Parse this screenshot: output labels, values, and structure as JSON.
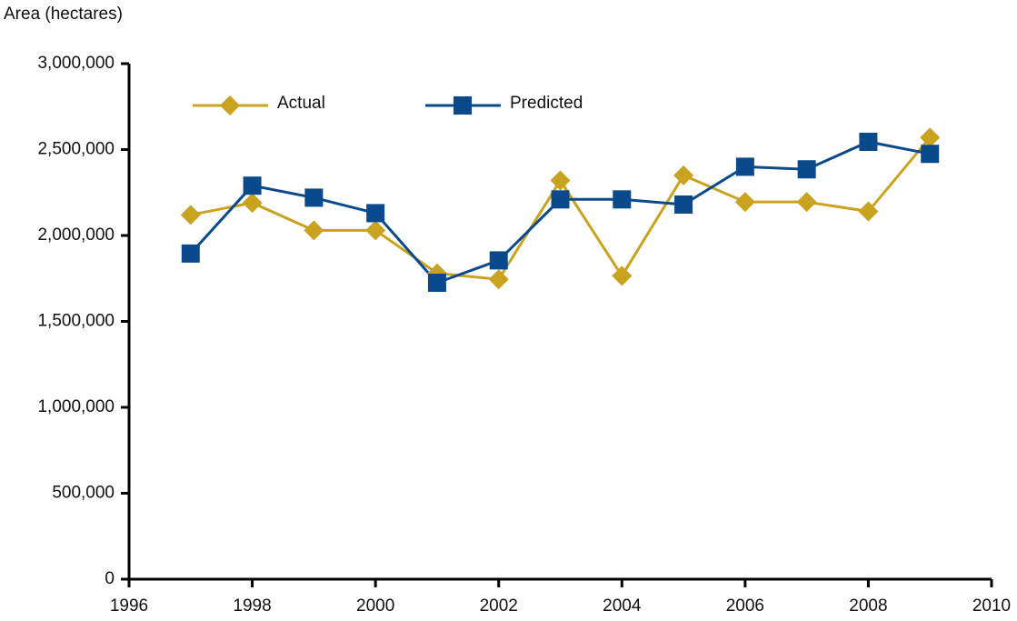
{
  "chart_data": {
    "type": "line",
    "y_label": "Area (hectares)",
    "x": [
      1997,
      1998,
      1999,
      2000,
      2001,
      2002,
      2003,
      2004,
      2005,
      2006,
      2007,
      2008,
      2009
    ],
    "series": [
      {
        "name": "Actual",
        "color": "#c9a21f",
        "marker": "diamond",
        "values": [
          2120000,
          2190000,
          2030000,
          2030000,
          1780000,
          1745000,
          2320000,
          1765000,
          2350000,
          2195000,
          2195000,
          2140000,
          2570000
        ]
      },
      {
        "name": "Predicted",
        "color": "#0a4a8c",
        "marker": "square",
        "values": [
          1895000,
          2290000,
          2220000,
          2130000,
          1725000,
          1855000,
          2210000,
          2210000,
          2180000,
          2400000,
          2385000,
          2545000,
          2475000
        ]
      }
    ],
    "xlim": [
      1996,
      2010
    ],
    "xticks": [
      1996,
      1998,
      2000,
      2002,
      2004,
      2006,
      2008,
      2010
    ],
    "ylim": [
      0,
      3000000
    ],
    "yticks": [
      0,
      {
        "value": 500000,
        "label": "500,000"
      },
      {
        "value": 1000000,
        "label": "1,000,000"
      },
      {
        "value": 1500000,
        "label": "1,500,000"
      },
      {
        "value": 2000000,
        "label": "2,000,000"
      },
      {
        "value": 2500000,
        "label": "2,500,000"
      },
      {
        "value": 3000000,
        "label": "3,000,000"
      }
    ],
    "grid": false,
    "legend": "upper left"
  }
}
